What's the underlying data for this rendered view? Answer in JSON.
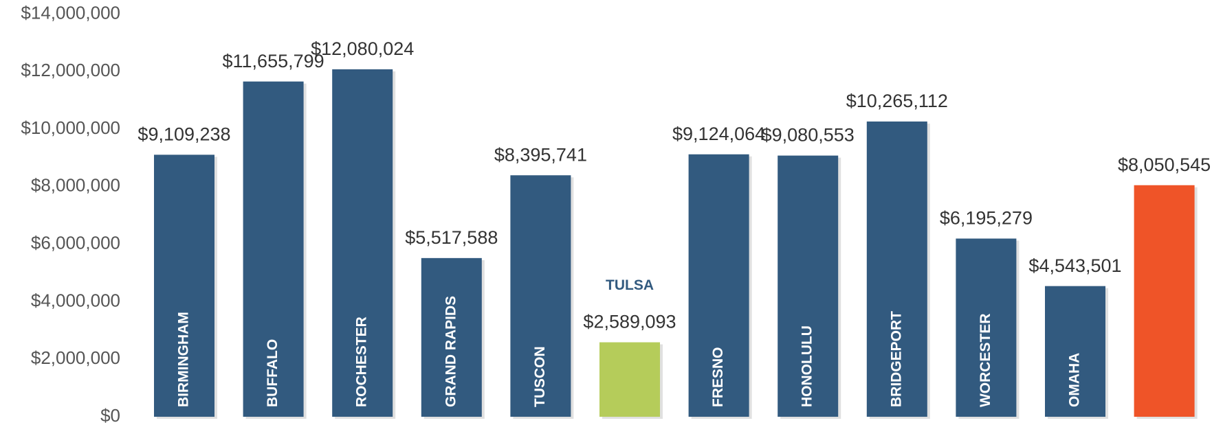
{
  "chart_data": {
    "type": "bar",
    "categories": [
      "BIRMINGHAM",
      "BUFFALO",
      "ROCHESTER",
      "GRAND RAPIDS",
      "TUSCON",
      "TULSA",
      "FRESNO",
      "HONOLULU",
      "BRIDGEPORT",
      "WORCESTER",
      "OMAHA",
      null
    ],
    "values": [
      9109238,
      11655799,
      12080024,
      5517588,
      8395741,
      2589093,
      9124064,
      9080553,
      10265112,
      6195279,
      4543501,
      8050545
    ],
    "value_labels": [
      "$9,109,238",
      "$11,655,799",
      "$12,080,024",
      "$5,517,588",
      "$8,395,741",
      "$2,589,093",
      "$9,124,064",
      "$9,080,553",
      "$10,265,112",
      "$6,195,279",
      "$4,543,501",
      "$8,050,545"
    ],
    "colors": [
      "#325a7f",
      "#325a7f",
      "#325a7f",
      "#325a7f",
      "#325a7f",
      "#b5cc5a",
      "#325a7f",
      "#325a7f",
      "#325a7f",
      "#325a7f",
      "#325a7f",
      "#ef5428"
    ],
    "ylim": [
      0,
      14000000
    ],
    "yticks": [
      {
        "value": 0,
        "label": "$0"
      },
      {
        "value": 2000000,
        "label": "$2,000,000"
      },
      {
        "value": 4000000,
        "label": "$4,000,000"
      },
      {
        "value": 6000000,
        "label": "$6,000,000"
      },
      {
        "value": 8000000,
        "label": "$8,000,000"
      },
      {
        "value": 10000000,
        "label": "$10,000,000"
      },
      {
        "value": 12000000,
        "label": "$12,000,000"
      },
      {
        "value": 14000000,
        "label": "$14,000,000"
      }
    ],
    "grid": false
  }
}
